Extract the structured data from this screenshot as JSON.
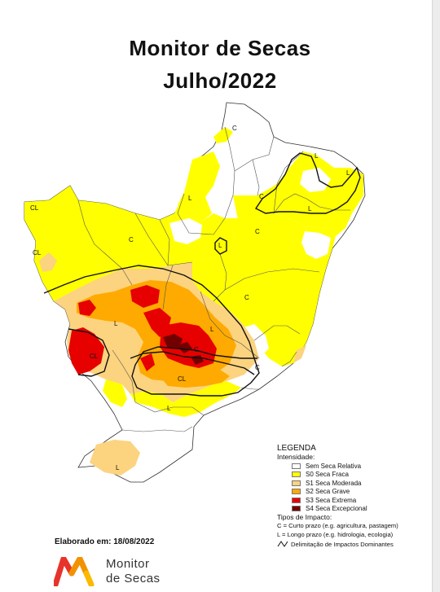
{
  "title_line1": "Monitor de Secas",
  "title_line2": "Julho/2022",
  "legend": {
    "heading": "LEGENDA",
    "intensity_title": "Intensidade:",
    "items": [
      {
        "label": "Sem Seca Relativa",
        "color": "#ffffff"
      },
      {
        "label": "S0 Seca Fraca",
        "color": "#ffff00"
      },
      {
        "label": "S1 Seca Moderada",
        "color": "#fcd37f"
      },
      {
        "label": "S2 Seca Grave",
        "color": "#ffaa00"
      },
      {
        "label": "S3 Seca Extrema",
        "color": "#e60000"
      },
      {
        "label": "S4 Seca Excepcional",
        "color": "#730000"
      }
    ],
    "impact_title": "Tipos de Impacto:",
    "impact_short": "C = Curto prazo (e.g. agricultura, pastagem)",
    "impact_long": "L = Longo prazo (e.g. hidrologia, ecologia)",
    "boundary_label": "Delimitação de Impactos Dominantes"
  },
  "map_labels": [
    "C",
    "L",
    "L",
    "L",
    "CL",
    "CL",
    "C",
    "C",
    "L",
    "C",
    "C",
    "L",
    "C",
    "L",
    "CL",
    "CL",
    "L",
    "C",
    "L",
    "L"
  ],
  "credit": "Elaborado em: 18/08/2022",
  "brand_line1": "Monitor",
  "brand_line2": "de Secas",
  "logo_colors": {
    "red": "#e8332a",
    "orange": "#f39200",
    "yellow": "#fbb900"
  }
}
